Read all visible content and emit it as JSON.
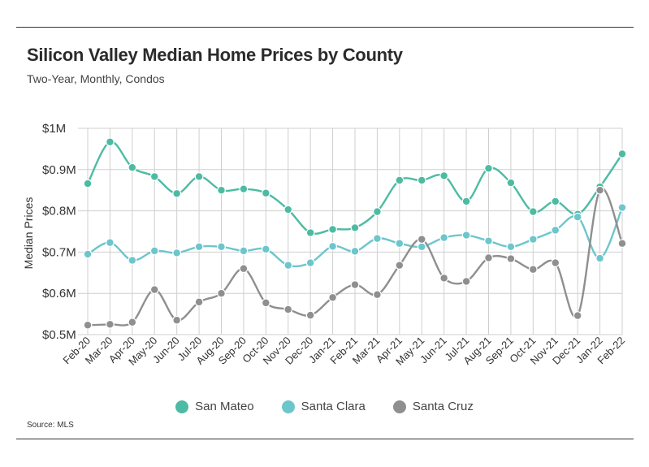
{
  "title": "Silicon Valley Median Home Prices by County",
  "subtitle": "Two-Year, Monthly, Condos",
  "source": "Source:  MLS",
  "chart_data": {
    "type": "line",
    "ylabel": "Median Prices",
    "xlabel": "",
    "ylim": [
      0.5,
      1.0
    ],
    "yticks": [
      0.5,
      0.6,
      0.7,
      0.8,
      0.9,
      1.0
    ],
    "ytick_labels": [
      "$0.5M",
      "$0.6M",
      "$0.7M",
      "$0.8M",
      "$0.9M",
      "$1M"
    ],
    "grid": true,
    "legend_position": "bottom-center",
    "categories": [
      "Feb-20",
      "Mar-20",
      "Apr-20",
      "May-20",
      "Jun-20",
      "Jul-20",
      "Aug-20",
      "Sep-20",
      "Oct-20",
      "Nov-20",
      "Dec-20",
      "Jan-21",
      "Feb-21",
      "Mar-21",
      "Apr-21",
      "May-21",
      "Jun-21",
      "Jul-21",
      "Aug-21",
      "Sep-21",
      "Oct-21",
      "Nov-21",
      "Dec-21",
      "Jan-22",
      "Feb-22"
    ],
    "series": [
      {
        "name": "San Mateo",
        "color": "#4dbba3",
        "values": [
          0.866,
          0.967,
          0.905,
          0.883,
          0.842,
          0.883,
          0.85,
          0.853,
          0.843,
          0.803,
          0.747,
          0.755,
          0.759,
          0.798,
          0.874,
          0.874,
          0.885,
          0.823,
          0.903,
          0.868,
          0.798,
          0.823,
          0.792,
          0.858,
          0.938
        ]
      },
      {
        "name": "Santa Clara",
        "color": "#6cc6cc",
        "values": [
          0.695,
          0.723,
          0.68,
          0.703,
          0.698,
          0.713,
          0.713,
          0.703,
          0.707,
          0.668,
          0.674,
          0.714,
          0.702,
          0.733,
          0.721,
          0.713,
          0.735,
          0.741,
          0.727,
          0.713,
          0.731,
          0.753,
          0.785,
          0.685,
          0.808
        ]
      },
      {
        "name": "Santa Cruz",
        "color": "#8f8f8f",
        "values": [
          0.523,
          0.525,
          0.53,
          0.609,
          0.535,
          0.579,
          0.6,
          0.66,
          0.577,
          0.561,
          0.547,
          0.59,
          0.621,
          0.597,
          0.668,
          0.731,
          0.637,
          0.629,
          0.686,
          0.684,
          0.658,
          0.674,
          0.546,
          0.85,
          0.721
        ]
      }
    ]
  }
}
